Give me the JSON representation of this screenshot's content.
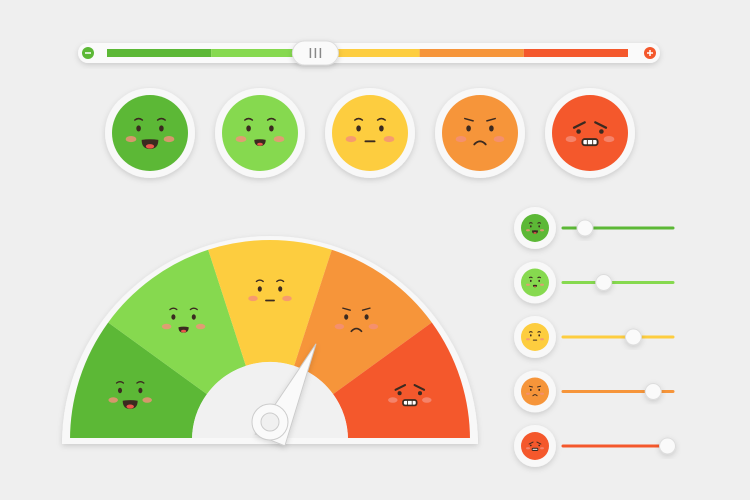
{
  "moods": [
    "#5cb836",
    "#86d94f",
    "#fdcd3f",
    "#f6953a",
    "#f4582c"
  ],
  "top_slider": {
    "value": 40
  },
  "gauge": {
    "value": 62
  },
  "sliders": [
    20,
    37,
    64,
    82,
    95
  ]
}
